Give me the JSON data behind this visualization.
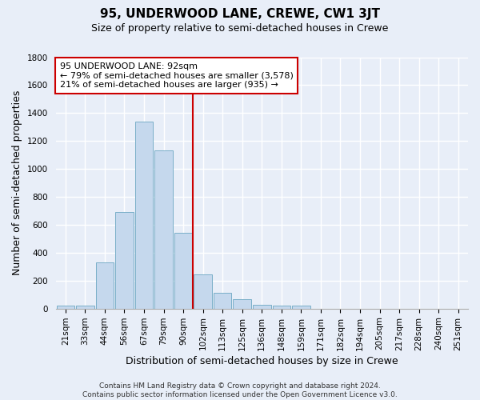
{
  "title": "95, UNDERWOOD LANE, CREWE, CW1 3JT",
  "subtitle": "Size of property relative to semi-detached houses in Crewe",
  "xlabel": "Distribution of semi-detached houses by size in Crewe",
  "ylabel": "Number of semi-detached properties",
  "bar_labels": [
    "21sqm",
    "33sqm",
    "44sqm",
    "56sqm",
    "67sqm",
    "79sqm",
    "90sqm",
    "102sqm",
    "113sqm",
    "125sqm",
    "136sqm",
    "148sqm",
    "159sqm",
    "171sqm",
    "182sqm",
    "194sqm",
    "205sqm",
    "217sqm",
    "228sqm",
    "240sqm",
    "251sqm"
  ],
  "bar_values": [
    20,
    20,
    330,
    690,
    1340,
    1130,
    545,
    245,
    115,
    65,
    25,
    20,
    20,
    0,
    0,
    0,
    0,
    0,
    0,
    0,
    0
  ],
  "bar_color": "#c5d8ed",
  "bar_edge_color": "#7aafc8",
  "vline_x_idx": 6,
  "vline_color": "#cc0000",
  "annotation_title": "95 UNDERWOOD LANE: 92sqm",
  "annotation_line1": "← 79% of semi-detached houses are smaller (3,578)",
  "annotation_line2": "21% of semi-detached houses are larger (935) →",
  "annotation_box_color": "#ffffff",
  "annotation_box_edge": "#cc0000",
  "ylim": [
    0,
    1800
  ],
  "yticks": [
    0,
    200,
    400,
    600,
    800,
    1000,
    1200,
    1400,
    1600,
    1800
  ],
  "footer_line1": "Contains HM Land Registry data © Crown copyright and database right 2024.",
  "footer_line2": "Contains public sector information licensed under the Open Government Licence v3.0.",
  "background_color": "#e8eef8",
  "grid_color": "#ffffff",
  "title_fontsize": 11,
  "subtitle_fontsize": 9,
  "axis_label_fontsize": 9,
  "tick_fontsize": 7.5,
  "annotation_fontsize": 8,
  "footer_fontsize": 6.5
}
